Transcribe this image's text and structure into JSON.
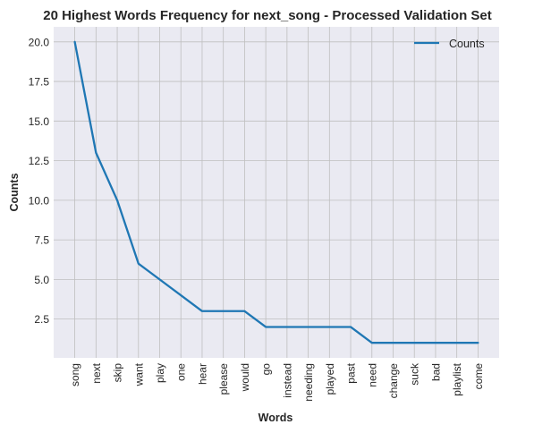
{
  "chart_data": {
    "type": "line",
    "title": "20 Highest Words Frequency for next_song - Processed Validation Set",
    "xlabel": "Words",
    "ylabel": "Counts",
    "categories": [
      "song",
      "next",
      "skip",
      "want",
      "play",
      "one",
      "hear",
      "please",
      "would",
      "go",
      "instead",
      "needing",
      "played",
      "past",
      "need",
      "change",
      "suck",
      "bad",
      "playlist",
      "come"
    ],
    "series": [
      {
        "name": "Counts",
        "values": [
          20,
          13,
          10,
          6,
          5,
          4,
          3,
          3,
          3,
          2,
          2,
          2,
          2,
          2,
          1,
          1,
          1,
          1,
          1,
          1
        ],
        "color": "#1f77b4"
      }
    ],
    "ylim": [
      0.05,
      20.95
    ],
    "yticks": [
      "2.5",
      "5.0",
      "7.5",
      "10.0",
      "12.5",
      "15.0",
      "17.5",
      "20.0"
    ],
    "grid": true,
    "legend_position": "top-right",
    "background_color": "#eaeaf2",
    "grid_color": "#bfbfbf"
  }
}
